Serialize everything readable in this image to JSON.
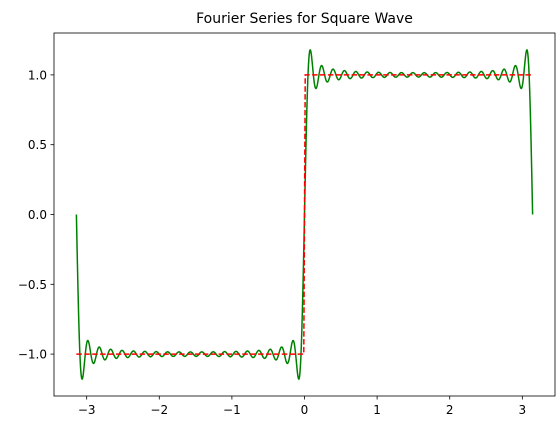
{
  "chart_data": {
    "type": "line",
    "title": "Fourier Series for Square Wave",
    "xlabel": "",
    "ylabel": "",
    "xlim": [
      -3.45,
      3.45
    ],
    "ylim": [
      -1.3,
      1.3
    ],
    "x_ticks": [
      -3,
      -2,
      -1,
      0,
      1,
      2,
      3
    ],
    "x_tick_labels": [
      "−3",
      "−2",
      "−1",
      "0",
      "1",
      "2",
      "3"
    ],
    "y_ticks": [
      -1.0,
      -0.5,
      0.0,
      0.5,
      1.0
    ],
    "y_tick_labels": [
      "−1.0",
      "−0.5",
      "0.0",
      "0.5",
      "1.0"
    ],
    "grid": false,
    "legend": "none",
    "series": [
      {
        "kind": "fourier_partial_sum",
        "function": "(4/pi) * sum over odd n from 1 to 39 of sin(n x)/n",
        "n_terms": 20,
        "x_range": [
          -3.14159,
          3.14159
        ],
        "color": "#008000",
        "line_style": "solid"
      },
      {
        "kind": "square_wave",
        "x": [
          -3.14159,
          -0.01,
          0.01,
          3.14159
        ],
        "y": [
          -1,
          -1,
          1,
          1
        ],
        "color": "#ff0000",
        "line_style": "dashed"
      }
    ]
  }
}
